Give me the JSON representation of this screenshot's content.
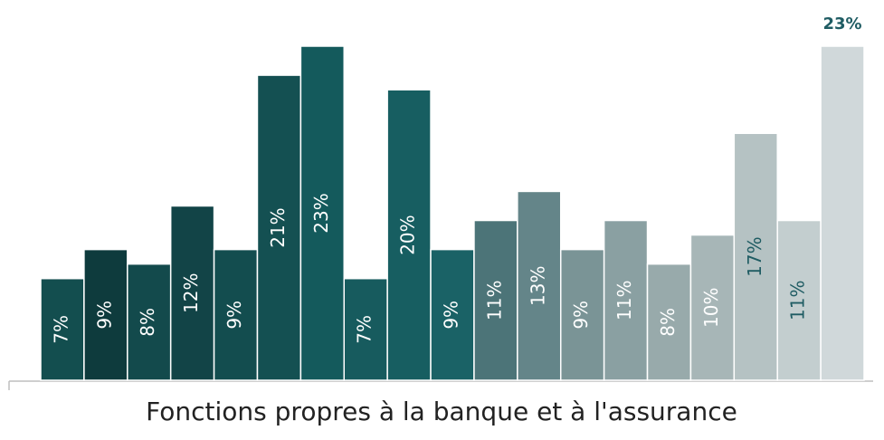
{
  "chart_data": {
    "type": "bar",
    "x_label": "Fonctions propres à la banque et à l'assurance",
    "values": [
      7,
      9,
      8,
      12,
      9,
      21,
      23,
      7,
      20,
      9,
      11,
      13,
      9,
      11,
      8,
      10,
      17,
      11,
      23
    ],
    "value_labels": [
      "7%",
      "9%",
      "8%",
      "12%",
      "9%",
      "21%",
      "23%",
      "7%",
      "20%",
      "9%",
      "11%",
      "13%",
      "9%",
      "11%",
      "8%",
      "10%",
      "17%",
      "11%",
      "23%"
    ],
    "colors": [
      "#134e4f",
      "#0e3b3d",
      "#134a4c",
      "#124447",
      "#134d4f",
      "#145052",
      "#145a5c",
      "#175b5e",
      "#175e61",
      "#1a6266",
      "#4c7478",
      "#648589",
      "#7a9496",
      "#8aa0a2",
      "#98aaab",
      "#a7b6b7",
      "#b5c2c3",
      "#c3cecf",
      "#d0d8da"
    ],
    "label_colors": [
      "#ffffff",
      "#ffffff",
      "#ffffff",
      "#ffffff",
      "#ffffff",
      "#ffffff",
      "#ffffff",
      "#ffffff",
      "#ffffff",
      "#ffffff",
      "#ffffff",
      "#ffffff",
      "#ffffff",
      "#ffffff",
      "#ffffff",
      "#ffffff",
      "#1f5c63",
      "#1f5c63",
      "#1f5c63"
    ]
  }
}
